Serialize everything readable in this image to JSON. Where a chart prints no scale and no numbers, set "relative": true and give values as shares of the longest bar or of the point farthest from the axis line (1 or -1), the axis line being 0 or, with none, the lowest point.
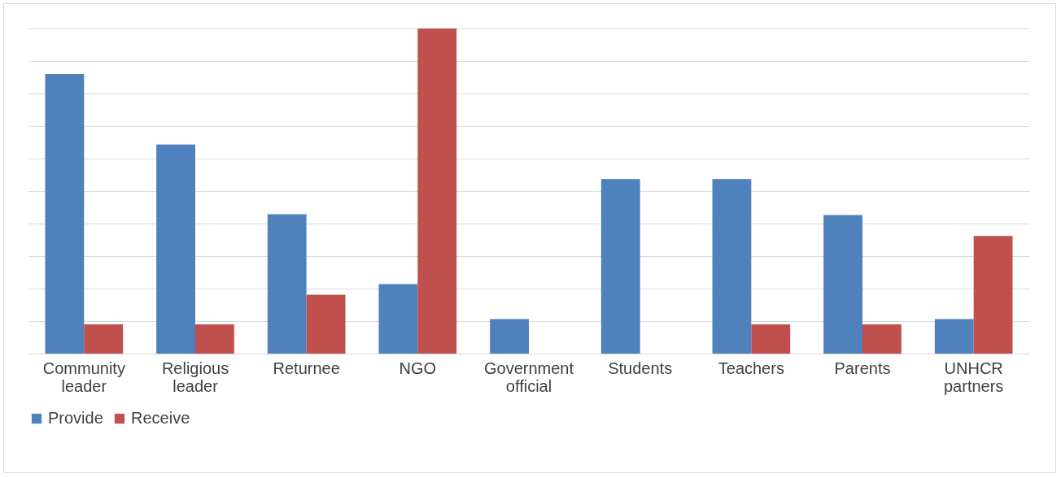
{
  "chart_data": {
    "type": "bar",
    "relative": true,
    "categories": [
      "Community leader",
      "Religious leader",
      "Returnee",
      "NGO",
      "Government official",
      "Students",
      "Teachers",
      "Parents",
      "UNHCR partners"
    ],
    "series": [
      {
        "name": "Provide",
        "color": "#4f81bd",
        "values": [
          0.86,
          0.643,
          0.429,
          0.214,
          0.106,
          0.537,
          0.537,
          0.426,
          0.106
        ]
      },
      {
        "name": "Receive",
        "color": "#c0504d",
        "values": [
          0.09,
          0.09,
          0.181,
          1,
          0,
          0,
          0.09,
          0.09,
          0.362
        ]
      }
    ],
    "grid": "y",
    "legend": "bottom"
  }
}
